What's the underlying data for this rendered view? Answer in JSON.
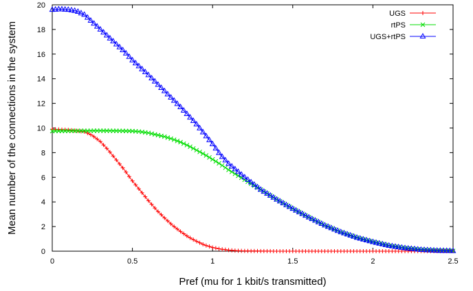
{
  "chart_data": {
    "type": "line",
    "xlabel": "Pref (mu for 1 kbit/s transmitted)",
    "ylabel": "Mean number of the connections in the system",
    "xlim": [
      0,
      2.5
    ],
    "ylim": [
      0,
      20
    ],
    "xticks": [
      "0",
      "0.5",
      "1",
      "1.5",
      "2",
      "2.5"
    ],
    "yticks": [
      "0",
      "2",
      "4",
      "6",
      "8",
      "10",
      "12",
      "14",
      "16",
      "18",
      "20"
    ],
    "grid": false,
    "legend_position": "top-right",
    "series": [
      {
        "name": "UGS",
        "color": "#ff0000",
        "marker": "plus",
        "x": [
          0,
          0.1,
          0.2,
          0.25,
          0.3,
          0.35,
          0.4,
          0.45,
          0.5,
          0.55,
          0.6,
          0.65,
          0.7,
          0.75,
          0.8,
          0.85,
          0.9,
          0.95,
          1.0,
          1.05,
          1.1,
          1.15,
          1.2,
          1.3,
          1.4,
          1.5,
          1.6,
          1.8,
          2.0,
          2.2,
          2.5
        ],
        "y": [
          9.9,
          9.85,
          9.7,
          9.4,
          8.9,
          8.2,
          7.4,
          6.6,
          5.7,
          4.9,
          4.1,
          3.35,
          2.7,
          2.1,
          1.6,
          1.15,
          0.8,
          0.5,
          0.3,
          0.17,
          0.09,
          0.04,
          0.02,
          0.01,
          0,
          0,
          0,
          0,
          0,
          0,
          0
        ]
      },
      {
        "name": "rtPS",
        "color": "#00dd00",
        "marker": "cross",
        "x": [
          0,
          0.1,
          0.2,
          0.3,
          0.4,
          0.5,
          0.55,
          0.6,
          0.65,
          0.7,
          0.75,
          0.8,
          0.85,
          0.9,
          0.95,
          1.0,
          1.05,
          1.1,
          1.2,
          1.3,
          1.4,
          1.5,
          1.6,
          1.7,
          1.8,
          1.9,
          2.0,
          2.1,
          2.2,
          2.3,
          2.4,
          2.5
        ],
        "y": [
          9.75,
          9.76,
          9.77,
          9.78,
          9.77,
          9.75,
          9.7,
          9.6,
          9.45,
          9.3,
          9.1,
          8.85,
          8.55,
          8.2,
          7.85,
          7.45,
          7.05,
          6.6,
          5.8,
          5.0,
          4.2,
          3.45,
          2.75,
          2.1,
          1.55,
          1.1,
          0.75,
          0.45,
          0.25,
          0.12,
          0.05,
          0.02
        ]
      },
      {
        "name": "UGS+rtPS",
        "color": "#0000ff",
        "marker": "triangle",
        "x": [
          0,
          0.05,
          0.1,
          0.15,
          0.2,
          0.25,
          0.3,
          0.35,
          0.4,
          0.45,
          0.5,
          0.6,
          0.7,
          0.8,
          0.9,
          0.95,
          1.0,
          1.05,
          1.1,
          1.2,
          1.3,
          1.4,
          1.5,
          1.6,
          1.7,
          1.8,
          1.9,
          2.0,
          2.1,
          2.2,
          2.3,
          2.4,
          2.5
        ],
        "y": [
          19.6,
          19.65,
          19.6,
          19.5,
          19.2,
          18.6,
          18.0,
          17.4,
          16.8,
          16.2,
          15.5,
          14.3,
          13.0,
          11.7,
          10.3,
          9.5,
          8.7,
          7.8,
          7.1,
          6.0,
          5.0,
          4.2,
          3.45,
          2.75,
          2.1,
          1.55,
          1.1,
          0.75,
          0.45,
          0.25,
          0.12,
          0.05,
          0.02
        ]
      }
    ]
  }
}
